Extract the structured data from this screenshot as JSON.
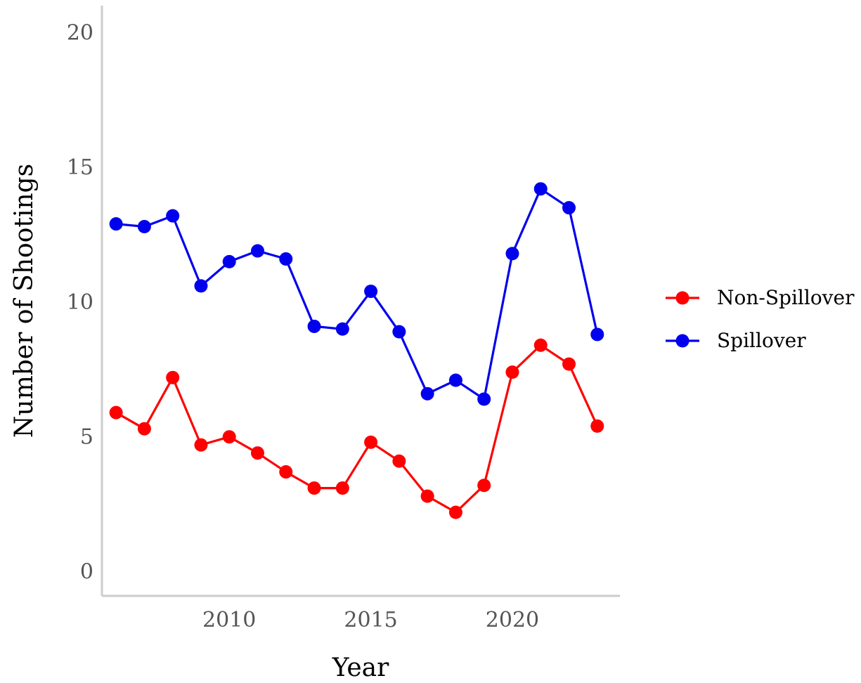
{
  "chart_data": {
    "type": "line",
    "title": "",
    "xlabel": "Year",
    "ylabel": "Number of Shootings",
    "xlim": [
      2005.5,
      2023.8
    ],
    "ylim": [
      -0.9,
      21.0
    ],
    "x_ticks": [
      2010,
      2015,
      2020
    ],
    "y_ticks": [
      0,
      5,
      10,
      15,
      20
    ],
    "grid": false,
    "legend_position": "right",
    "x": [
      2006,
      2007,
      2008,
      2009,
      2010,
      2011,
      2012,
      2013,
      2014,
      2015,
      2016,
      2017,
      2018,
      2019,
      2020,
      2021,
      2022,
      2023
    ],
    "series": [
      {
        "name": "Non-Spillover",
        "color": "#ff0000",
        "values": [
          5.9,
          5.3,
          7.2,
          4.7,
          5.0,
          4.4,
          3.7,
          3.1,
          3.1,
          4.8,
          4.1,
          2.8,
          2.2,
          3.2,
          7.4,
          8.4,
          7.7,
          5.4
        ]
      },
      {
        "name": "Spillover",
        "color": "#0000ee",
        "values": [
          12.9,
          12.8,
          13.2,
          10.6,
          11.5,
          11.9,
          11.6,
          9.1,
          9.0,
          10.4,
          8.9,
          6.6,
          7.1,
          6.4,
          11.8,
          14.2,
          13.5,
          8.8
        ]
      }
    ]
  }
}
